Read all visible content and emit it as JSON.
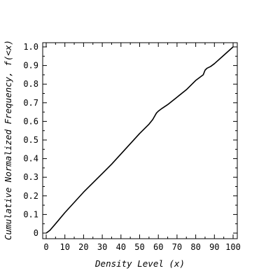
{
  "chart_data": {
    "type": "line",
    "title": "",
    "xlabel": "Density Level (x)",
    "ylabel": "Cumulative Normalized Frequency, f(<x)",
    "xlim": [
      0,
      100
    ],
    "ylim": [
      0,
      1.0
    ],
    "x_ticks": [
      "0",
      "10",
      "20",
      "30",
      "40",
      "50",
      "60",
      "70",
      "80",
      "90",
      "100"
    ],
    "y_ticks": [
      "0",
      "0.1",
      "0.2",
      "0.3",
      "0.4",
      "0.5",
      "0.6",
      "0.7",
      "0.8",
      "0.9",
      "1.0"
    ],
    "grid": false,
    "series": [
      {
        "color": "#000000",
        "x": [
          0,
          2,
          5,
          10,
          15,
          20,
          25,
          30,
          35,
          40,
          45,
          50,
          55,
          57,
          59,
          60,
          62,
          65,
          70,
          75,
          80,
          84,
          85,
          86,
          88,
          90,
          95,
          100
        ],
        "y": [
          0.0,
          0.015,
          0.05,
          0.11,
          0.165,
          0.22,
          0.27,
          0.32,
          0.37,
          0.425,
          0.48,
          0.535,
          0.585,
          0.61,
          0.645,
          0.655,
          0.67,
          0.69,
          0.73,
          0.77,
          0.82,
          0.85,
          0.875,
          0.885,
          0.895,
          0.91,
          0.955,
          1.0
        ]
      }
    ]
  }
}
